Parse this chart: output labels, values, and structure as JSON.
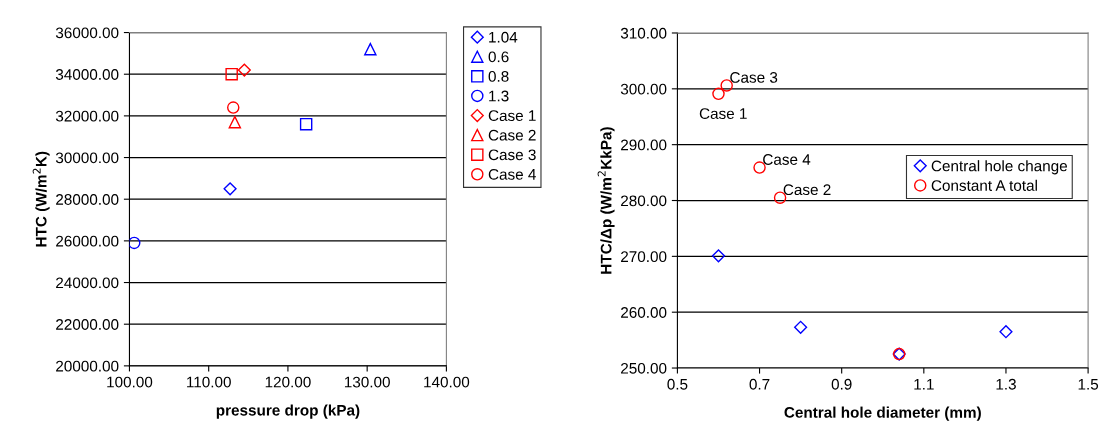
{
  "chart_data": [
    {
      "type": "scatter",
      "xlabel": "pressure drop (kPa)",
      "ylabel": "HTC (W/m$^{2}$K)",
      "xlim": [
        100,
        140
      ],
      "xticks": [
        {
          "value": 100,
          "label": "100.00"
        },
        {
          "value": 110,
          "label": "110.00"
        },
        {
          "value": 120,
          "label": "120.00"
        },
        {
          "value": 130,
          "label": "130.00"
        },
        {
          "value": 140,
          "label": "140.00"
        }
      ],
      "ylim": [
        20000,
        36000
      ],
      "yticks": [
        {
          "value": 20000,
          "label": "20000.00"
        },
        {
          "value": 22000,
          "label": "22000.00"
        },
        {
          "value": 24000,
          "label": "24000.00"
        },
        {
          "value": 26000,
          "label": "26000.00"
        },
        {
          "value": 28000,
          "label": "28000.00"
        },
        {
          "value": 30000,
          "label": "30000.00"
        },
        {
          "value": 32000,
          "label": "32000.00"
        },
        {
          "value": 34000,
          "label": "34000.00"
        },
        {
          "value": 36000,
          "label": "36000.00"
        }
      ],
      "grid": "y",
      "legend": "right",
      "series": [
        {
          "name": "1.04",
          "color": "#0000ff",
          "marker": "diamond",
          "x": [
            112.7
          ],
          "values": [
            28500
          ]
        },
        {
          "name": "0.6",
          "color": "#0000ff",
          "marker": "triangle",
          "x": [
            130.4
          ],
          "values": [
            35200
          ]
        },
        {
          "name": "0.8",
          "color": "#0000ff",
          "marker": "square",
          "x": [
            122.3
          ],
          "values": [
            31600
          ]
        },
        {
          "name": "1.3",
          "color": "#0000ff",
          "marker": "circle",
          "x": [
            100.6
          ],
          "values": [
            25900
          ]
        },
        {
          "name": "Case 1",
          "color": "#ff0000",
          "marker": "diamond",
          "x": [
            114.5
          ],
          "values": [
            34200
          ]
        },
        {
          "name": "Case 2",
          "color": "#ff0000",
          "marker": "triangle",
          "x": [
            113.3
          ],
          "values": [
            31700
          ]
        },
        {
          "name": "Case 3",
          "color": "#ff0000",
          "marker": "square",
          "x": [
            112.9
          ],
          "values": [
            34000
          ]
        },
        {
          "name": "Case 4",
          "color": "#ff0000",
          "marker": "circle",
          "x": [
            113.1
          ],
          "values": [
            32400
          ]
        }
      ]
    },
    {
      "type": "scatter",
      "xlabel": "Central hole diameter (mm)",
      "ylabel": "HTC/Δp (W/m$^{2}$KkPa)",
      "xlim": [
        0.5,
        1.5
      ],
      "xticks": [
        0.5,
        0.7,
        0.9,
        1.1,
        1.3,
        1.5
      ],
      "ylim": [
        250,
        310
      ],
      "yticks": [
        {
          "value": 250,
          "label": "250.00"
        },
        {
          "value": 260,
          "label": "260.00"
        },
        {
          "value": 270,
          "label": "270.00"
        },
        {
          "value": 280,
          "label": "280.00"
        },
        {
          "value": 290,
          "label": "290.00"
        },
        {
          "value": 300,
          "label": "300.00"
        },
        {
          "value": 310,
          "label": "310.00"
        }
      ],
      "grid": "y",
      "legend": "right",
      "series": [
        {
          "name": "Central hole change",
          "color": "#0000ff",
          "marker": "diamond",
          "x": [
            0.6,
            0.8,
            1.04,
            1.3
          ],
          "values": [
            270.1,
            257.3,
            252.5,
            256.5
          ]
        },
        {
          "name": "Constant A total",
          "color": "#ff0000",
          "marker": "circle",
          "x": [
            0.6,
            0.62,
            0.7,
            0.75,
            1.04
          ],
          "values": [
            299.1,
            300.6,
            285.9,
            280.5,
            252.5
          ]
        }
      ],
      "annotations": [
        {
          "text": "Case 1",
          "x": 0.6,
          "y": 299.1
        },
        {
          "text": "Case 3",
          "x": 0.62,
          "y": 300.6
        },
        {
          "text": "Case 4",
          "x": 0.7,
          "y": 285.9
        },
        {
          "text": "Case 2",
          "x": 0.75,
          "y": 280.5
        }
      ]
    }
  ]
}
